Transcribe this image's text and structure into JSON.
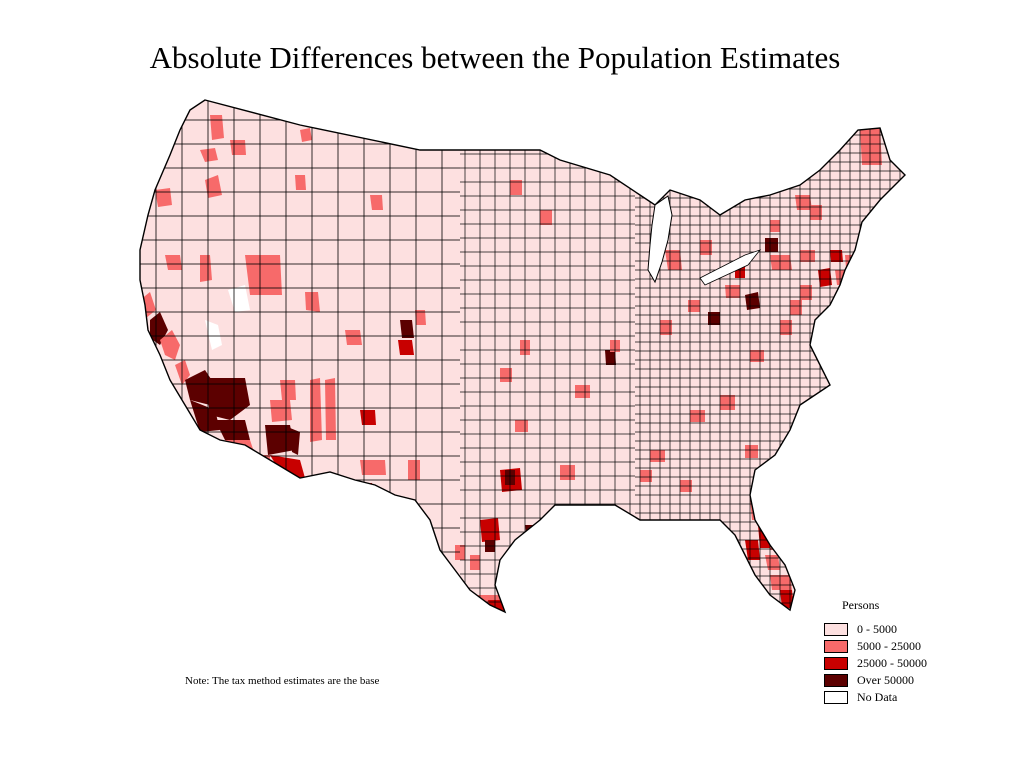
{
  "title": "Absolute Differences between the Population Estimates",
  "note": "Note: The tax method estimates are the base",
  "legend": {
    "title": "Persons",
    "items": [
      {
        "label": "0 - 5000",
        "color": "#fde0e0",
        "key": "c0"
      },
      {
        "label": "5000 - 25000",
        "color": "#f76a6a",
        "key": "c1"
      },
      {
        "label": "25000 - 50000",
        "color": "#c80000",
        "key": "c2"
      },
      {
        "label": "Over 50000",
        "color": "#5c0000",
        "key": "c3"
      },
      {
        "label": "No Data",
        "color": "#ffffff",
        "key": "nd"
      }
    ]
  },
  "colors": {
    "county_border": "#000000",
    "base_fill": "#fde0e0",
    "c1": "#f76a6a",
    "c2": "#c80000",
    "c3": "#5c0000",
    "nd": "#ffffff"
  }
}
